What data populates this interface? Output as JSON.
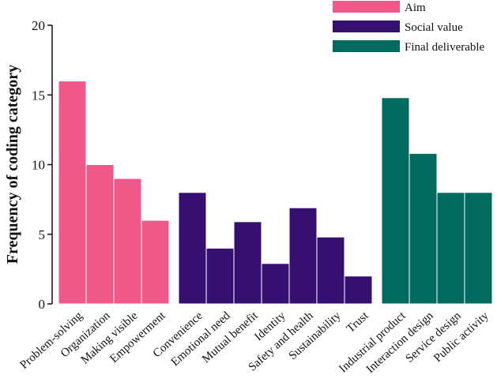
{
  "chart_data": {
    "type": "bar",
    "title": "",
    "xlabel": "",
    "ylabel": "Frequency of coding category",
    "ylim": [
      0,
      20
    ],
    "yticks": [
      0,
      5,
      10,
      15,
      20
    ],
    "grid": false,
    "legend_position": "top-right",
    "series": [
      {
        "name": "Aim",
        "color": "#f0588a",
        "categories": [
          "Problem-solving",
          "Organization",
          "Making visible",
          "Empowerment"
        ],
        "values": [
          16,
          10,
          9,
          6
        ]
      },
      {
        "name": "Social value",
        "color": "#361070",
        "categories": [
          "Convenience",
          "Emotional need",
          "Mutual benefit",
          "Identity",
          "Safety and health",
          "Sustainability",
          "Trust"
        ],
        "values": [
          8,
          4,
          5.9,
          2.9,
          6.9,
          4.8,
          2
        ]
      },
      {
        "name": "Final deliverable",
        "color": "#006b5e",
        "categories": [
          "Industrial product",
          "Interaction design",
          "Service design",
          "Public activity"
        ],
        "values": [
          14.8,
          10.8,
          8,
          8
        ]
      }
    ]
  }
}
